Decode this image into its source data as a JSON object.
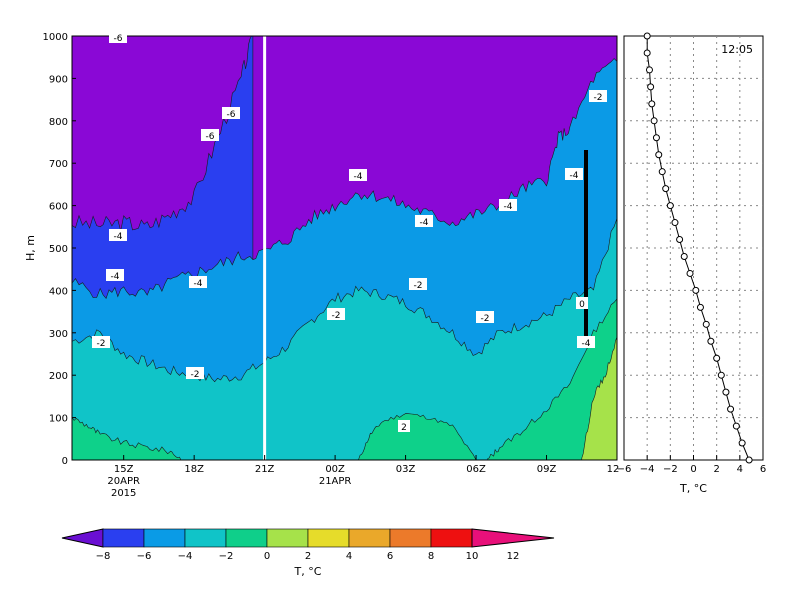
{
  "chart_data": [
    {
      "type": "heatmap",
      "name": "time-height temperature cross-section",
      "ylabel": "H, m",
      "ylim": [
        0,
        1000
      ],
      "yticks": [
        0,
        100,
        200,
        300,
        400,
        500,
        600,
        700,
        800,
        900,
        1000
      ],
      "xtick_labels": [
        "15Z",
        "18Z",
        "21Z",
        "00Z",
        "03Z",
        "06Z",
        "09Z",
        "12"
      ],
      "xtick_date_labels": [
        {
          "at": "15Z",
          "lines": [
            "20APR",
            "2015"
          ]
        },
        {
          "at": "00Z",
          "lines": [
            "21APR"
          ]
        }
      ],
      "x_start_hour": 12.8,
      "x_end_hour": 36.0,
      "current_time_marker": "21Z",
      "contour_levels": [
        -8,
        -6,
        -4,
        -2,
        0,
        2,
        4
      ],
      "contour_labels": [
        "-6",
        "-6",
        "-6",
        "-4",
        "-4",
        "-4",
        "-4",
        "-4",
        "-4",
        "-4",
        "-2",
        "-2",
        "-2",
        "-2",
        "-2",
        "-2",
        "0",
        "2",
        "-4"
      ],
      "isotherm_heights_m": {
        "-6": [
          [
            12.8,
            560
          ],
          [
            14,
            555
          ],
          [
            15,
            560
          ],
          [
            16,
            550
          ],
          [
            17,
            580
          ],
          [
            18,
            620
          ],
          [
            19,
            760
          ],
          [
            20,
            900
          ],
          [
            20.5,
            1000
          ]
        ],
        "-4": [
          [
            12.8,
            420
          ],
          [
            14,
            390
          ],
          [
            15,
            400
          ],
          [
            16,
            390
          ],
          [
            17,
            420
          ],
          [
            18,
            440
          ],
          [
            19,
            460
          ],
          [
            20,
            480
          ],
          [
            21,
            490
          ],
          [
            22,
            520
          ],
          [
            23,
            570
          ],
          [
            24,
            600
          ],
          [
            25,
            630
          ],
          [
            26,
            620
          ],
          [
            27,
            600
          ],
          [
            28,
            580
          ],
          [
            29,
            560
          ],
          [
            30,
            580
          ],
          [
            31,
            600
          ],
          [
            32,
            640
          ],
          [
            33,
            660
          ],
          [
            33.5,
            760
          ],
          [
            34,
            780
          ],
          [
            35,
            900
          ],
          [
            36,
            940
          ]
        ],
        "-2": [
          [
            12.8,
            280
          ],
          [
            14,
            300
          ],
          [
            15,
            250
          ],
          [
            16,
            230
          ],
          [
            17,
            210
          ],
          [
            18,
            200
          ],
          [
            19,
            190
          ],
          [
            20,
            200
          ],
          [
            21,
            230
          ],
          [
            22,
            270
          ],
          [
            23,
            330
          ],
          [
            24,
            380
          ],
          [
            25,
            400
          ],
          [
            26,
            390
          ],
          [
            27,
            370
          ],
          [
            28,
            340
          ],
          [
            29,
            300
          ],
          [
            30,
            250
          ],
          [
            31,
            300
          ],
          [
            32,
            320
          ],
          [
            33,
            340
          ],
          [
            34,
            380
          ],
          [
            35,
            400
          ],
          [
            36,
            570
          ]
        ],
        "0": [
          [
            12.8,
            100
          ],
          [
            13.5,
            80
          ],
          [
            14,
            60
          ],
          [
            15,
            40
          ],
          [
            16,
            30
          ],
          [
            17,
            20
          ],
          [
            17.5,
            0
          ]
        ],
        "0b": [
          [
            25,
            0
          ],
          [
            25.5,
            60
          ],
          [
            26,
            90
          ],
          [
            27,
            110
          ],
          [
            28,
            100
          ],
          [
            29,
            80
          ],
          [
            30,
            0
          ]
        ],
        "0c": [
          [
            30.5,
            0
          ],
          [
            31,
            30
          ],
          [
            32,
            70
          ],
          [
            33,
            120
          ],
          [
            34,
            180
          ],
          [
            35,
            300
          ],
          [
            36,
            380
          ]
        ],
        "2": [
          [
            34.5,
            0
          ],
          [
            35,
            150
          ],
          [
            35.5,
            200
          ],
          [
            36,
            290
          ]
        ]
      }
    },
    {
      "type": "line",
      "name": "temperature profile",
      "title": "12:05",
      "xlabel": "T, °C",
      "xlim": [
        -6,
        6
      ],
      "ylim": [
        0,
        1000
      ],
      "xticks": [
        -6,
        -4,
        -2,
        0,
        2,
        4,
        6
      ],
      "grid": true,
      "x": [
        -4.0,
        -4.0,
        -3.8,
        -3.7,
        -3.6,
        -3.4,
        -3.2,
        -3.0,
        -2.7,
        -2.4,
        -2.0,
        -1.6,
        -1.2,
        -0.8,
        -0.3,
        0.2,
        0.6,
        1.1,
        1.5,
        2.0,
        2.4,
        2.8,
        3.2,
        3.7,
        4.2,
        4.8
      ],
      "y": [
        1000,
        960,
        920,
        880,
        840,
        800,
        760,
        720,
        680,
        640,
        600,
        560,
        520,
        480,
        440,
        400,
        360,
        320,
        280,
        240,
        200,
        160,
        120,
        80,
        40,
        0
      ]
    }
  ],
  "colorbar": {
    "label": "T, °C",
    "tick_labels": [
      "−8",
      "−6",
      "−4",
      "−2",
      "0",
      "2",
      "4",
      "6",
      "8",
      "10",
      "12"
    ],
    "colors": [
      "#6a0fd2",
      "#2a3ff0",
      "#0a9be6",
      "#10c4c8",
      "#0fcf8a",
      "#a6e24a",
      "#e6dc2a",
      "#eaa82a",
      "#ec7a2a",
      "#ee1010",
      "#e8107a"
    ]
  },
  "colors": {
    "lt_m8": "#8a08d6",
    "m8_m6": "#7d00d8",
    "m6_m4": "#2a3ff0",
    "m4_m2": "#0b9ae6",
    "m2_0": "#10c4c8",
    "p0_2": "#0ed18a",
    "p2_4": "#a6e24a"
  }
}
